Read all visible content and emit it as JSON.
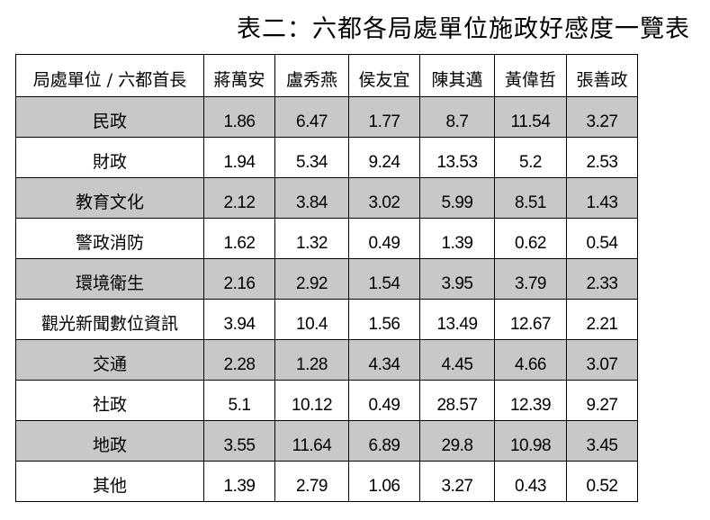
{
  "title": "表二：六都各局處單位施政好感度一覽表",
  "table": {
    "corner_header": "局處單位 / 六都首長",
    "columns": [
      "蔣萬安",
      "盧秀燕",
      "侯友宜",
      "陳其邁",
      "黃偉哲",
      "張善政"
    ],
    "rows": [
      {
        "label": "民政",
        "values": [
          "1.86",
          "6.47",
          "1.77",
          "8.7",
          "11.54",
          "3.27"
        ]
      },
      {
        "label": "財政",
        "values": [
          "1.94",
          "5.34",
          "9.24",
          "13.53",
          "5.2",
          "2.53"
        ]
      },
      {
        "label": "教育文化",
        "values": [
          "2.12",
          "3.84",
          "3.02",
          "5.99",
          "8.51",
          "1.43"
        ]
      },
      {
        "label": "警政消防",
        "values": [
          "1.62",
          "1.32",
          "0.49",
          "1.39",
          "0.62",
          "0.54"
        ]
      },
      {
        "label": "環境衛生",
        "values": [
          "2.16",
          "2.92",
          "1.54",
          "3.95",
          "3.79",
          "2.33"
        ]
      },
      {
        "label": "觀光新聞數位資訊",
        "values": [
          "3.94",
          "10.4",
          "1.56",
          "13.49",
          "12.67",
          "2.21"
        ]
      },
      {
        "label": "交通",
        "values": [
          "2.28",
          "1.28",
          "4.34",
          "4.45",
          "4.66",
          "3.07"
        ]
      },
      {
        "label": "社政",
        "values": [
          "5.1",
          "10.12",
          "0.49",
          "28.57",
          "12.39",
          "9.27"
        ]
      },
      {
        "label": "地政",
        "values": [
          "3.55",
          "11.64",
          "6.89",
          "29.8",
          "10.98",
          "3.45"
        ]
      },
      {
        "label": "其他",
        "values": [
          "1.39",
          "2.79",
          "1.06",
          "3.27",
          "0.43",
          "0.52"
        ]
      }
    ]
  },
  "colors": {
    "shaded_row": "#c8c8c8",
    "plain_row": "#ffffff",
    "border": "#000000"
  }
}
